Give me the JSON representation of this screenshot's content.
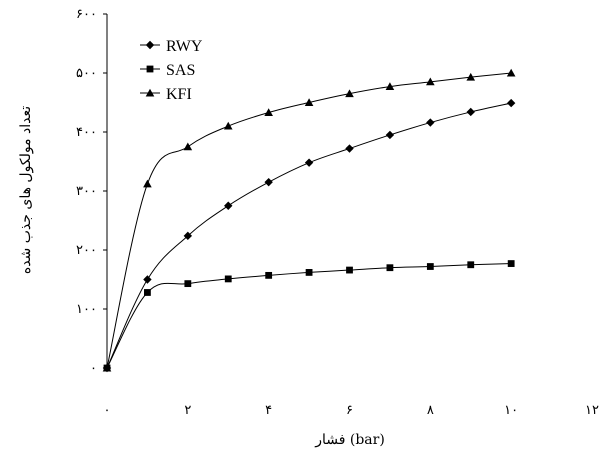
{
  "chart_data": {
    "type": "line",
    "xlabel": "فشار (bar)",
    "ylabel": "تعداد مولکول های جذب شده",
    "xlim": [
      0,
      12
    ],
    "ylim": [
      0,
      600
    ],
    "xticks": [
      0,
      2,
      4,
      6,
      8,
      10,
      12
    ],
    "yticks": [
      0,
      100,
      200,
      300,
      400,
      500,
      600
    ],
    "xtick_labels": [
      "۰",
      "۲",
      "۴",
      "۶",
      "۸",
      "۱۰",
      "۱۲"
    ],
    "ytick_labels": [
      "۰",
      "۱۰۰",
      "۲۰۰",
      "۳۰۰",
      "۴۰۰",
      "۵۰۰",
      "۶۰۰"
    ],
    "grid": false,
    "legend_position": "top-left",
    "series": [
      {
        "name": "RWY",
        "marker": "diamond",
        "x": [
          0,
          1,
          2,
          3,
          4,
          5,
          6,
          7,
          8,
          9,
          10
        ],
        "values": [
          0,
          150,
          224,
          275,
          315,
          348,
          372,
          395,
          416,
          434,
          449
        ]
      },
      {
        "name": "SAS",
        "marker": "square",
        "x": [
          0,
          1,
          2,
          3,
          4,
          5,
          6,
          7,
          8,
          9,
          10
        ],
        "values": [
          0,
          128,
          143,
          151,
          157,
          162,
          166,
          170,
          172,
          175,
          177
        ]
      },
      {
        "name": "KFI",
        "marker": "triangle",
        "x": [
          0,
          1,
          2,
          3,
          4,
          5,
          6,
          7,
          8,
          9,
          10
        ],
        "values": [
          0,
          312,
          375,
          410,
          433,
          450,
          465,
          477,
          485,
          493,
          500
        ]
      }
    ]
  }
}
